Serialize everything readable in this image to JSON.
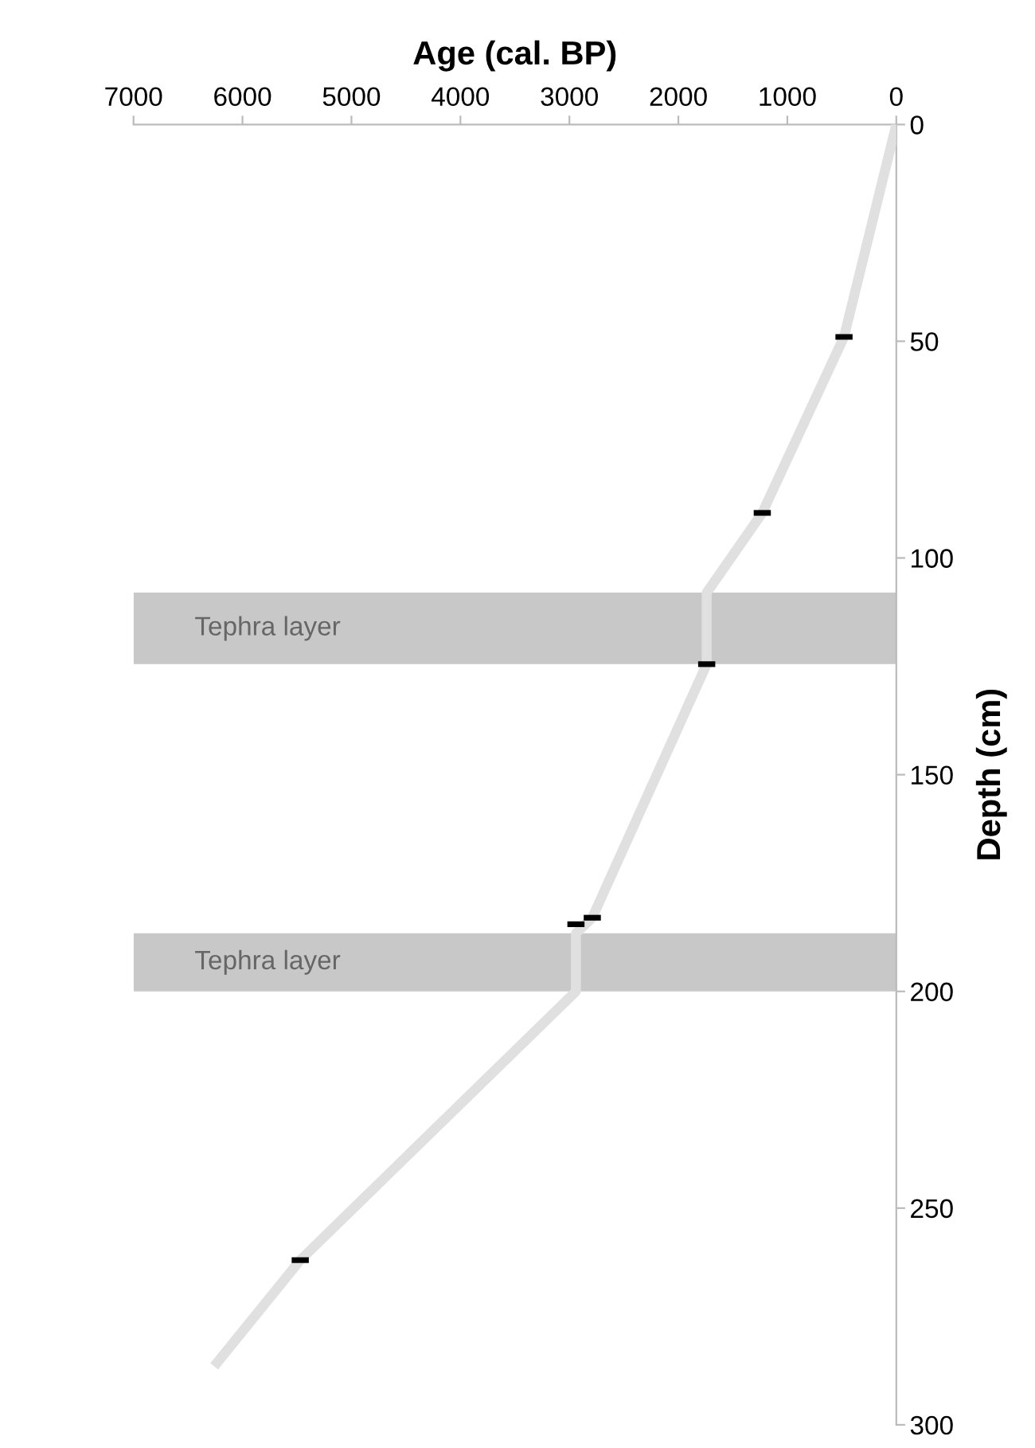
{
  "chart_data": {
    "type": "line",
    "xlabel": "Age (cal. BP)",
    "ylabel": "Depth (cm)",
    "xlim": [
      7000,
      0
    ],
    "xticks": [
      7000,
      6000,
      5000,
      4000,
      3000,
      2000,
      1000,
      0
    ],
    "ylim": [
      300,
      0
    ],
    "yticks": [
      0,
      50,
      100,
      150,
      200,
      250,
      300
    ],
    "grid": false,
    "legend": false,
    "series": [
      {
        "color": "#e0e0e0",
        "x": [
          0,
          480,
          1230,
          1740,
          1740,
          2790,
          2940,
          2940,
          5470,
          6260
        ],
        "values": [
          0,
          49,
          89.6,
          108,
          124.5,
          183,
          186.6,
          200,
          262,
          286.5
        ]
      },
      {
        "type": "scatter",
        "marker": "square",
        "color": "#000000",
        "x": [
          480,
          1230,
          1740,
          2790,
          2940,
          5470
        ],
        "values": [
          49,
          89.6,
          124.5,
          183,
          184.5,
          262
        ]
      }
    ],
    "bands": [
      {
        "axis": "y",
        "from": 108,
        "to": 124.5,
        "label": "Tephra layer",
        "color": "#c8c8c8"
      },
      {
        "axis": "y",
        "from": 186.6,
        "to": 200,
        "label": "Tephra layer",
        "color": "#c8c8c8"
      }
    ]
  }
}
